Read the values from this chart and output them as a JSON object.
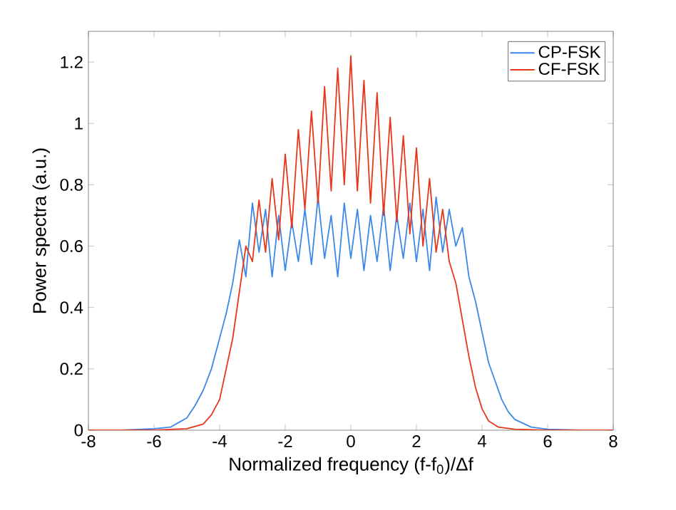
{
  "chart_data": {
    "type": "line",
    "xlabel": "Normalized frequency (f-f$_{0}$)/Δf",
    "ylabel": "Power spectra (a.u.)",
    "xlim": [
      -8,
      8
    ],
    "ylim": [
      0,
      1.3
    ],
    "xticks": [
      -8,
      -6,
      -4,
      -2,
      0,
      2,
      4,
      6,
      8
    ],
    "yticks": [
      0,
      0.2,
      0.4,
      0.6,
      0.8,
      1,
      1.2
    ],
    "grid": false,
    "legend": "top right",
    "marker": "none",
    "line_style": "solid",
    "series": [
      {
        "name": "CP-FSK",
        "color": "#3b88e8",
        "x": [
          -8,
          -7,
          -6,
          -5.5,
          -5,
          -4.75,
          -4.5,
          -4.25,
          -4,
          -3.8,
          -3.6,
          -3.4,
          -3.2,
          -3.0,
          -2.8,
          -2.6,
          -2.4,
          -2.2,
          -2.0,
          -1.8,
          -1.6,
          -1.4,
          -1.2,
          -1.0,
          -0.8,
          -0.6,
          -0.4,
          -0.2,
          0,
          0.2,
          0.4,
          0.6,
          0.8,
          1.0,
          1.2,
          1.4,
          1.6,
          1.8,
          2.0,
          2.2,
          2.4,
          2.6,
          2.8,
          3.0,
          3.2,
          3.4,
          3.6,
          3.8,
          4.0,
          4.2,
          4.4,
          4.6,
          4.8,
          5.0,
          5.5,
          6,
          7,
          8
        ],
        "values": [
          0,
          0,
          0.005,
          0.01,
          0.04,
          0.08,
          0.13,
          0.2,
          0.3,
          0.38,
          0.48,
          0.62,
          0.5,
          0.74,
          0.58,
          0.72,
          0.5,
          0.7,
          0.52,
          0.68,
          0.55,
          0.72,
          0.54,
          0.76,
          0.56,
          0.7,
          0.5,
          0.74,
          0.56,
          0.72,
          0.52,
          0.7,
          0.55,
          0.73,
          0.52,
          0.7,
          0.56,
          0.74,
          0.55,
          0.72,
          0.52,
          0.76,
          0.58,
          0.72,
          0.6,
          0.66,
          0.5,
          0.42,
          0.32,
          0.22,
          0.16,
          0.1,
          0.06,
          0.035,
          0.01,
          0.003,
          0,
          0
        ]
      },
      {
        "name": "CF-FSK",
        "color": "#e8361b",
        "x": [
          -8,
          -7,
          -6,
          -5,
          -4.5,
          -4.25,
          -4,
          -3.8,
          -3.6,
          -3.4,
          -3.2,
          -3.0,
          -2.8,
          -2.6,
          -2.4,
          -2.2,
          -2.0,
          -1.8,
          -1.6,
          -1.4,
          -1.2,
          -1.0,
          -0.8,
          -0.6,
          -0.4,
          -0.2,
          0,
          0.2,
          0.4,
          0.6,
          0.8,
          1.0,
          1.2,
          1.4,
          1.6,
          1.8,
          2.0,
          2.2,
          2.4,
          2.6,
          2.8,
          3.0,
          3.2,
          3.4,
          3.6,
          3.8,
          4.0,
          4.2,
          4.5,
          5,
          6,
          7,
          8
        ],
        "values": [
          0,
          0,
          0,
          0.005,
          0.02,
          0.05,
          0.1,
          0.2,
          0.3,
          0.45,
          0.6,
          0.55,
          0.75,
          0.58,
          0.82,
          0.62,
          0.9,
          0.66,
          0.98,
          0.72,
          1.04,
          0.74,
          1.12,
          0.78,
          1.18,
          0.8,
          1.22,
          0.78,
          1.14,
          0.74,
          1.1,
          0.7,
          1.02,
          0.68,
          0.96,
          0.64,
          0.92,
          0.6,
          0.82,
          0.58,
          0.72,
          0.55,
          0.48,
          0.36,
          0.24,
          0.14,
          0.07,
          0.03,
          0.01,
          0.003,
          0,
          0,
          0
        ]
      }
    ]
  }
}
